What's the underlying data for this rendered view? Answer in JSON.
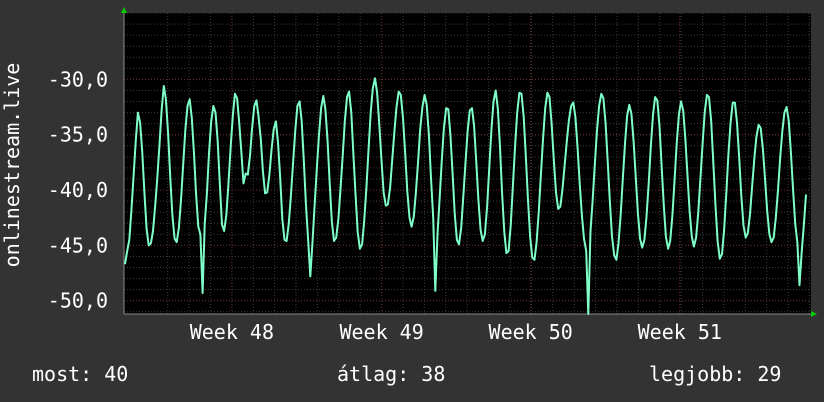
{
  "chart_data": {
    "type": "line",
    "ylabel": "onlinestream.live",
    "ylim": [
      -51.2,
      -24.0
    ],
    "yticks": [
      -50,
      -45,
      -40,
      -35,
      -30
    ],
    "ytick_labels": [
      "-50,0",
      "-45,0",
      "-40,0",
      "-35,0",
      "-30,0"
    ],
    "xlim": [
      0,
      100
    ],
    "xticks": [
      {
        "x": 15.7,
        "label": "Week 48"
      },
      {
        "x": 37.5,
        "label": "Week 49"
      },
      {
        "x": 59.2,
        "label": "Week 50"
      },
      {
        "x": 80.9,
        "label": "Week 51"
      }
    ],
    "grid": true,
    "series": [
      {
        "color": "#7fffc8",
        "values": [
          -46.7,
          -45.5,
          -44.5,
          -41.7,
          -38.7,
          -35.5,
          -33.0,
          -33.9,
          -36.5,
          -40.2,
          -43.5,
          -45.0,
          -44.8,
          -43.7,
          -41.4,
          -38.9,
          -35.9,
          -32.8,
          -30.6,
          -31.8,
          -34.9,
          -38.9,
          -42.3,
          -44.4,
          -44.7,
          -43.4,
          -40.9,
          -37.7,
          -34.6,
          -32.4,
          -31.8,
          -33.5,
          -36.7,
          -40.4,
          -43.3,
          -44.0,
          -49.3,
          -43.1,
          -40.3,
          -36.7,
          -33.8,
          -32.4,
          -33.0,
          -35.6,
          -39.4,
          -43.1,
          -43.7,
          -42.3,
          -39.5,
          -36.2,
          -33.3,
          -31.3,
          -31.7,
          -33.9,
          -36.6,
          -39.4,
          -38.5,
          -38.6,
          -36.9,
          -34.4,
          -32.4,
          -31.9,
          -33.4,
          -35.4,
          -38.3,
          -40.3,
          -40.2,
          -38.6,
          -36.4,
          -34.5,
          -33.8,
          -35.7,
          -38.9,
          -42.6,
          -44.5,
          -44.6,
          -43.0,
          -40.5,
          -37.5,
          -34.6,
          -32.4,
          -32.0,
          -33.8,
          -37.5,
          -41.4,
          -44.6,
          -47.8,
          -44.7,
          -41.4,
          -38.1,
          -35.0,
          -32.6,
          -31.5,
          -32.7,
          -35.6,
          -39.4,
          -42.9,
          -44.6,
          -44.3,
          -42.6,
          -39.9,
          -36.9,
          -33.8,
          -31.6,
          -31.1,
          -33.0,
          -36.8,
          -40.5,
          -43.8,
          -45.3,
          -44.9,
          -42.8,
          -39.8,
          -36.4,
          -33.0,
          -30.8,
          -29.9,
          -31.2,
          -34.1,
          -37.3,
          -40.2,
          -41.4,
          -41.3,
          -39.8,
          -37.3,
          -34.7,
          -32.5,
          -31.1,
          -31.4,
          -33.5,
          -36.7,
          -40.1,
          -42.5,
          -43.3,
          -42.4,
          -40.2,
          -37.4,
          -34.5,
          -32.5,
          -31.4,
          -32.3,
          -35.0,
          -38.9,
          -42.5,
          -49.1,
          -44.0,
          -40.8,
          -37.3,
          -34.4,
          -32.6,
          -32.7,
          -35.0,
          -38.5,
          -42.1,
          -44.5,
          -44.9,
          -43.4,
          -40.6,
          -37.5,
          -34.6,
          -32.8,
          -32.6,
          -34.2,
          -37.5,
          -40.9,
          -43.6,
          -44.6,
          -44.0,
          -41.5,
          -38.1,
          -34.6,
          -32.0,
          -31.0,
          -32.6,
          -36.1,
          -40.3,
          -43.8,
          -45.7,
          -45.5,
          -43.1,
          -39.6,
          -36.0,
          -33.0,
          -31.2,
          -31.3,
          -33.4,
          -36.9,
          -40.9,
          -44.3,
          -46.1,
          -46.3,
          -44.7,
          -41.9,
          -38.6,
          -35.3,
          -32.6,
          -31.2,
          -31.6,
          -34.1,
          -37.4,
          -40.2,
          -41.7,
          -41.5,
          -39.9,
          -37.8,
          -35.6,
          -33.7,
          -32.4,
          -32.1,
          -33.4,
          -36.2,
          -39.4,
          -42.3,
          -44.4,
          -45.5,
          -51.2,
          -43.7,
          -41.0,
          -37.7,
          -34.6,
          -32.4,
          -31.3,
          -31.7,
          -34.0,
          -37.4,
          -41.1,
          -44.2,
          -45.9,
          -46.3,
          -44.8,
          -42.2,
          -39.0,
          -35.8,
          -33.3,
          -32.3,
          -33.1,
          -35.6,
          -38.9,
          -42.1,
          -44.4,
          -45.2,
          -44.5,
          -42.4,
          -39.4,
          -36.1,
          -33.2,
          -31.6,
          -31.9,
          -34.2,
          -37.8,
          -41.4,
          -44.2,
          -45.3,
          -44.6,
          -42.3,
          -39.2,
          -35.8,
          -33.2,
          -32.0,
          -32.8,
          -35.3,
          -38.7,
          -41.9,
          -44.2,
          -45.1,
          -44.3,
          -42.1,
          -39.0,
          -35.8,
          -33.0,
          -31.4,
          -31.6,
          -33.8,
          -37.5,
          -41.4,
          -44.6,
          -46.2,
          -45.8,
          -43.6,
          -40.3,
          -36.8,
          -33.9,
          -32.1,
          -32.1,
          -33.9,
          -37.1,
          -40.5,
          -43.2,
          -44.3,
          -43.9,
          -42.2,
          -39.7,
          -37.2,
          -35.2,
          -34.1,
          -34.4,
          -36.3,
          -39.1,
          -41.9,
          -44.0,
          -44.7,
          -44.3,
          -42.5,
          -40.0,
          -37.2,
          -34.7,
          -33.0,
          -32.5,
          -33.8,
          -36.6,
          -40.0,
          -43.0,
          -44.8,
          -48.6,
          -45.6,
          -43.2,
          -40.4
        ]
      }
    ]
  },
  "stats": {
    "current_label": "most:",
    "current_value": "40",
    "average_label": "átlag:",
    "average_value": "38",
    "best_label": "legjobb:",
    "best_value": "29"
  }
}
